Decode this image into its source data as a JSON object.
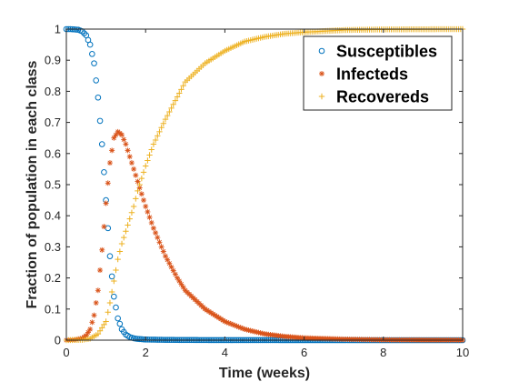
{
  "chart_data": {
    "type": "scatter",
    "title": "",
    "xlabel": "Time (weeks)",
    "ylabel": "Fraction of population in each class",
    "xlim": [
      0,
      10
    ],
    "ylim": [
      0,
      1
    ],
    "xticks": [
      "0",
      "2",
      "4",
      "6",
      "8",
      "10"
    ],
    "yticks": [
      "0",
      "0.1",
      "0.2",
      "0.3",
      "0.4",
      "0.5",
      "0.6",
      "0.7",
      "0.8",
      "0.9",
      "1"
    ],
    "grid": false,
    "legend_position": "top-right",
    "series": [
      {
        "name": "Susceptibles",
        "marker": "circle",
        "color": "#0072BD",
        "x": [
          0,
          0.1,
          0.2,
          0.3,
          0.4,
          0.5,
          0.6,
          0.7,
          0.8,
          0.9,
          1.0,
          1.1,
          1.2,
          1.3,
          1.4,
          1.5,
          1.6,
          1.7,
          1.8,
          1.9,
          2.0,
          2.5,
          3.0,
          4.0,
          5.0,
          6.0,
          8.0,
          10.0
        ],
        "y": [
          1.0,
          1.0,
          0.999,
          0.998,
          0.993,
          0.98,
          0.95,
          0.89,
          0.78,
          0.63,
          0.45,
          0.27,
          0.14,
          0.07,
          0.035,
          0.018,
          0.01,
          0.006,
          0.004,
          0.003,
          0.002,
          0.001,
          0.0005,
          0.0002,
          0.0001,
          0.0,
          0.0,
          0.0
        ]
      },
      {
        "name": "Infecteds",
        "marker": "asterisk",
        "color": "#D95319",
        "x": [
          0,
          0.2,
          0.4,
          0.5,
          0.6,
          0.7,
          0.8,
          0.9,
          1.0,
          1.1,
          1.2,
          1.3,
          1.4,
          1.5,
          1.6,
          1.8,
          2.0,
          2.2,
          2.5,
          2.8,
          3.0,
          3.5,
          4.0,
          4.5,
          5.0,
          5.5,
          6.0,
          7.0,
          8.0,
          9.0,
          10.0
        ],
        "y": [
          0.0,
          0.001,
          0.006,
          0.015,
          0.035,
          0.08,
          0.16,
          0.29,
          0.44,
          0.57,
          0.65,
          0.67,
          0.66,
          0.63,
          0.59,
          0.51,
          0.43,
          0.36,
          0.27,
          0.2,
          0.16,
          0.1,
          0.06,
          0.035,
          0.02,
          0.012,
          0.007,
          0.003,
          0.001,
          0.0005,
          0.0002
        ]
      },
      {
        "name": "Recovereds",
        "marker": "plus",
        "color": "#EDB120",
        "x": [
          0,
          0.4,
          0.6,
          0.8,
          1.0,
          1.1,
          1.2,
          1.3,
          1.4,
          1.5,
          1.6,
          1.7,
          1.8,
          2.0,
          2.2,
          2.5,
          3.0,
          3.5,
          4.0,
          4.5,
          5.0,
          5.5,
          6.0,
          7.0,
          8.0,
          10.0
        ],
        "y": [
          0.0,
          0.001,
          0.005,
          0.02,
          0.06,
          0.12,
          0.19,
          0.26,
          0.31,
          0.35,
          0.39,
          0.43,
          0.48,
          0.56,
          0.63,
          0.71,
          0.83,
          0.89,
          0.93,
          0.96,
          0.975,
          0.985,
          0.99,
          0.997,
          0.999,
          1.0
        ]
      }
    ]
  }
}
